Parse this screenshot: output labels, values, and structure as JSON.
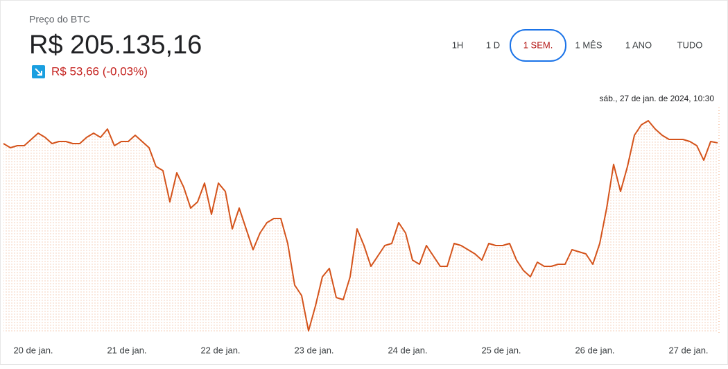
{
  "header": {
    "title": "Preço do BTC",
    "price": "R$ 205.135,16",
    "change": "R$ 53,66 (-0,03%)"
  },
  "buttons": [
    "1H",
    "1 D",
    "1 SEM.",
    "1 MÊS",
    "1 ANO",
    "TUDO"
  ],
  "selected_button": 2,
  "chart_data": {
    "type": "line",
    "annotation": "sáb., 27 de jan. de 2024, 10:30",
    "x_labels": [
      "20 de jan.",
      "21 de jan.",
      "22 de jan.",
      "23 de jan.",
      "24 de jan.",
      "25 de jan.",
      "26 de jan.",
      "27 de jan."
    ],
    "color": "#d4531b",
    "ylim": [
      196000,
      207000
    ],
    "values": [
      205100,
      204900,
      205000,
      205000,
      205300,
      205600,
      205400,
      205100,
      205200,
      205200,
      205100,
      205100,
      205400,
      205600,
      205400,
      205800,
      205000,
      205200,
      205200,
      205500,
      205200,
      204900,
      204000,
      203800,
      202300,
      203700,
      203000,
      202000,
      202300,
      203200,
      201700,
      203200,
      202800,
      201000,
      202000,
      201000,
      200000,
      200800,
      201300,
      201500,
      201500,
      200300,
      198300,
      197800,
      196100,
      197300,
      198700,
      199100,
      197700,
      197600,
      198700,
      201000,
      200200,
      199200,
      199700,
      200200,
      200300,
      201300,
      200800,
      199500,
      199300,
      200200,
      199700,
      199200,
      199200,
      200300,
      200200,
      200000,
      199800,
      199500,
      200300,
      200200,
      200200,
      200300,
      199500,
      199000,
      198700,
      199400,
      199200,
      199200,
      199300,
      199300,
      200000,
      199900,
      199800,
      199300,
      200300,
      202000,
      204100,
      202800,
      204000,
      205500,
      206000,
      206200,
      205800,
      205500,
      205300,
      205300,
      205300,
      205200,
      205000,
      204300,
      205200,
      205135
    ]
  }
}
